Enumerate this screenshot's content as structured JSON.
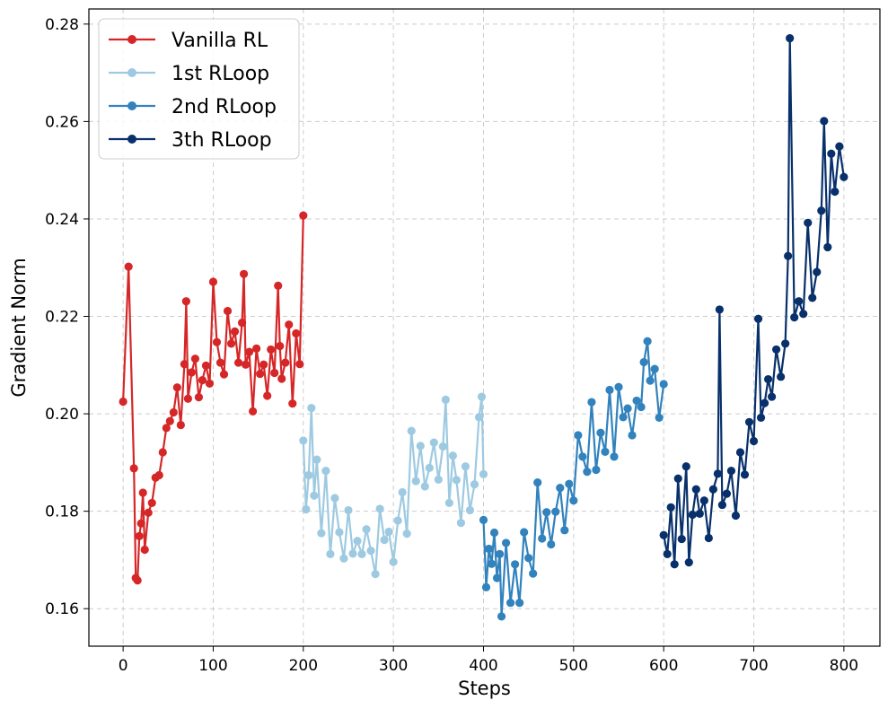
{
  "chart_data": {
    "type": "line",
    "title": "",
    "xlabel": "Steps",
    "ylabel": "Gradient Norm",
    "xlim": [
      -38,
      840
    ],
    "ylim": [
      0.1523,
      0.2831
    ],
    "xticks": [
      0,
      100,
      200,
      300,
      400,
      500,
      600,
      700,
      800
    ],
    "yticks": [
      0.16,
      0.18,
      0.2,
      0.22,
      0.24,
      0.26,
      0.28
    ],
    "ytick_labels": [
      "0.16",
      "0.18",
      "0.20",
      "0.22",
      "0.24",
      "0.26",
      "0.28"
    ],
    "grid": true,
    "legend_position": "top-left",
    "series": [
      {
        "name": "Vanilla RL",
        "color": "#d62728",
        "x": [
          0,
          6,
          12,
          14,
          16,
          18,
          20,
          22,
          24,
          28,
          32,
          36,
          40,
          44,
          48,
          52,
          56,
          60,
          64,
          68,
          70,
          72,
          76,
          80,
          84,
          88,
          92,
          96,
          100,
          104,
          108,
          112,
          116,
          120,
          124,
          128,
          132,
          134,
          136,
          140,
          144,
          148,
          152,
          156,
          160,
          164,
          168,
          172,
          174,
          176,
          180,
          184,
          188,
          192,
          196,
          200
        ],
        "values": [
          0.2025,
          0.2302,
          0.1888,
          0.1663,
          0.1658,
          0.1749,
          0.1775,
          0.1838,
          0.1721,
          0.1797,
          0.1817,
          0.1869,
          0.1874,
          0.1921,
          0.1971,
          0.1985,
          0.2003,
          0.2054,
          0.1977,
          0.2102,
          0.2231,
          0.2031,
          0.2085,
          0.2113,
          0.2034,
          0.2069,
          0.2099,
          0.2062,
          0.2271,
          0.2147,
          0.2105,
          0.2081,
          0.2211,
          0.2144,
          0.2169,
          0.2105,
          0.2187,
          0.2287,
          0.2101,
          0.2127,
          0.2005,
          0.2134,
          0.2082,
          0.2101,
          0.2037,
          0.2132,
          0.2084,
          0.2263,
          0.2139,
          0.2072,
          0.2105,
          0.2183,
          0.2021,
          0.2165,
          0.2102,
          0.2407
        ]
      },
      {
        "name": "1st RLoop",
        "color": "#9ecae1",
        "x": [
          200,
          203,
          206,
          209,
          212,
          215,
          220,
          225,
          230,
          235,
          240,
          245,
          250,
          255,
          260,
          265,
          270,
          275,
          280,
          285,
          290,
          295,
          300,
          305,
          310,
          315,
          320,
          325,
          330,
          335,
          340,
          345,
          350,
          355,
          358,
          362,
          366,
          370,
          375,
          380,
          385,
          390,
          395,
          398,
          400
        ],
        "values": [
          0.1945,
          0.1804,
          0.1874,
          0.2012,
          0.1832,
          0.1906,
          0.1755,
          0.1883,
          0.1712,
          0.1827,
          0.1757,
          0.1703,
          0.1802,
          0.1713,
          0.1739,
          0.1712,
          0.1763,
          0.1719,
          0.1671,
          0.1805,
          0.1741,
          0.1758,
          0.1696,
          0.1781,
          0.1839,
          0.1754,
          0.1965,
          0.1862,
          0.1934,
          0.1851,
          0.1889,
          0.1941,
          0.1865,
          0.1933,
          0.2029,
          0.1817,
          0.1914,
          0.1864,
          0.1776,
          0.1892,
          0.1802,
          0.1855,
          0.1993,
          0.2035,
          0.1876
        ]
      },
      {
        "name": "2nd RLoop",
        "color": "#3182bd",
        "x": [
          400,
          403,
          406,
          409,
          412,
          415,
          418,
          420,
          425,
          430,
          435,
          440,
          445,
          450,
          455,
          460,
          465,
          470,
          475,
          480,
          485,
          490,
          495,
          500,
          505,
          510,
          515,
          520,
          525,
          530,
          535,
          540,
          545,
          550,
          555,
          560,
          565,
          570,
          575,
          578,
          582,
          585,
          590,
          595,
          600
        ],
        "values": [
          0.1782,
          0.1644,
          0.1723,
          0.1692,
          0.1756,
          0.1663,
          0.1712,
          0.1584,
          0.1735,
          0.1612,
          0.1691,
          0.1612,
          0.1757,
          0.1704,
          0.1672,
          0.1859,
          0.1744,
          0.1798,
          0.1732,
          0.1799,
          0.1848,
          0.1761,
          0.1856,
          0.1822,
          0.1956,
          0.1912,
          0.1881,
          0.2024,
          0.1885,
          0.1961,
          0.1922,
          0.2049,
          0.1912,
          0.2055,
          0.1993,
          0.2011,
          0.1956,
          0.2027,
          0.2014,
          0.2106,
          0.2149,
          0.2068,
          0.2092,
          0.1992,
          0.2061
        ]
      },
      {
        "name": "3th RLoop",
        "color": "#08306b",
        "x": [
          600,
          604,
          608,
          612,
          616,
          620,
          625,
          628,
          632,
          636,
          640,
          645,
          650,
          655,
          660,
          662,
          665,
          670,
          675,
          680,
          685,
          690,
          695,
          700,
          705,
          708,
          712,
          716,
          720,
          725,
          730,
          735,
          738,
          740,
          745,
          750,
          755,
          760,
          765,
          770,
          775,
          778,
          782,
          786,
          790,
          795,
          800
        ],
        "values": [
          0.1751,
          0.1712,
          0.1808,
          0.1691,
          0.1867,
          0.1743,
          0.1892,
          0.1695,
          0.1793,
          0.1845,
          0.1795,
          0.1822,
          0.1745,
          0.1845,
          0.1877,
          0.2214,
          0.1813,
          0.1836,
          0.1883,
          0.1791,
          0.1921,
          0.1875,
          0.1983,
          0.1944,
          0.2195,
          0.1992,
          0.2022,
          0.2071,
          0.2035,
          0.2132,
          0.2076,
          0.2144,
          0.2324,
          0.2771,
          0.2198,
          0.2231,
          0.2205,
          0.2392,
          0.2238,
          0.2291,
          0.2417,
          0.2601,
          0.2342,
          0.2534,
          0.2456,
          0.2549,
          0.2486
        ]
      }
    ]
  }
}
